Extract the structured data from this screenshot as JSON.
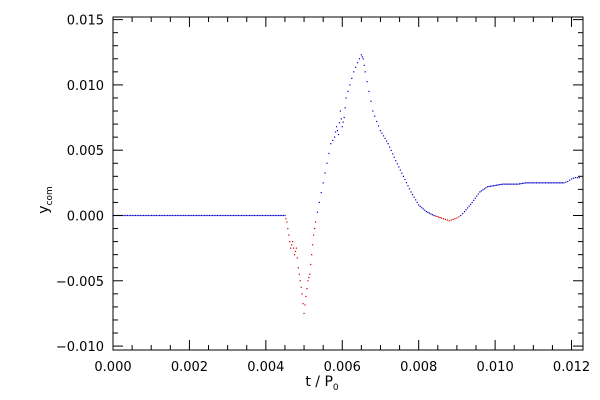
{
  "chart_data": {
    "type": "scatter",
    "title": "",
    "xlabel": {
      "main": "t / P",
      "sub": "0"
    },
    "ylabel": {
      "main": "y",
      "sub": "com"
    },
    "xlim": [
      0.0,
      0.0123
    ],
    "ylim": [
      -0.0103,
      0.0152
    ],
    "xticks": [
      0.0,
      0.002,
      0.004,
      0.006,
      0.008,
      0.01,
      0.012
    ],
    "xtick_labels": [
      "0.000",
      "0.002",
      "0.004",
      "0.006",
      "0.008",
      "0.010",
      "0.012"
    ],
    "yticks": [
      -0.01,
      -0.005,
      0.0,
      0.005,
      0.01,
      0.015
    ],
    "ytick_labels": [
      "−0.010",
      "−0.005",
      "0.000",
      "0.005",
      "0.010",
      "0.015"
    ],
    "grid": false,
    "legend": "none",
    "colors": {
      "positive": "#0000cc",
      "negative": "#cc0000",
      "axis": "#000000"
    },
    "series": [
      {
        "values_x": [
          0.0,
          0.0045,
          0.00455,
          0.0046,
          0.00465,
          0.0047,
          0.00475,
          0.0048,
          0.00485,
          0.0049,
          0.00495,
          0.005,
          0.00505,
          0.0051,
          0.00515,
          0.0052,
          0.00525,
          0.0053,
          0.0054,
          0.0055,
          0.0056,
          0.0057,
          0.0058,
          0.00585,
          0.0059,
          0.00595,
          0.006,
          0.00605,
          0.0061,
          0.0062,
          0.0063,
          0.0064,
          0.0065,
          0.00655,
          0.0066,
          0.0067,
          0.0068,
          0.0069,
          0.007,
          0.0072,
          0.0074,
          0.0076,
          0.0078,
          0.008,
          0.0082,
          0.0084,
          0.0086,
          0.0087,
          0.0088,
          0.0089,
          0.009,
          0.0091,
          0.0092,
          0.0094,
          0.0096,
          0.0098,
          0.01,
          0.0102,
          0.0104,
          0.0106,
          0.0108,
          0.011,
          0.0112,
          0.0114,
          0.0116,
          0.0118,
          0.0119,
          0.012,
          0.0121,
          0.0122
        ],
        "values_y": [
          0.0,
          0.0,
          -0.0005,
          -0.0015,
          -0.0025,
          -0.002,
          -0.003,
          -0.0025,
          -0.004,
          -0.005,
          -0.006,
          -0.0075,
          -0.0062,
          -0.005,
          -0.0045,
          -0.003,
          -0.0015,
          -0.0005,
          0.001,
          0.0025,
          0.004,
          0.0055,
          0.006,
          0.0068,
          0.0062,
          0.008,
          0.0068,
          0.0075,
          0.009,
          0.01,
          0.011,
          0.0117,
          0.0123,
          0.012,
          0.011,
          0.0095,
          0.008,
          0.0072,
          0.0065,
          0.0055,
          0.0042,
          0.003,
          0.0018,
          0.0008,
          0.0003,
          0.0,
          -0.0002,
          -0.0003,
          -0.0004,
          -0.0003,
          -0.0002,
          0.0,
          0.0003,
          0.001,
          0.0018,
          0.0022,
          0.0023,
          0.0024,
          0.0024,
          0.0024,
          0.0025,
          0.0025,
          0.0025,
          0.0025,
          0.0025,
          0.0025,
          0.0026,
          0.0028,
          0.0029,
          0.0029
        ]
      }
    ]
  }
}
